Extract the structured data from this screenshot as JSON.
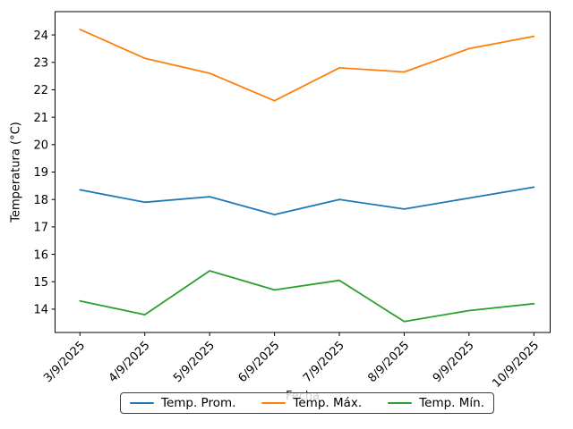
{
  "chart_data": {
    "type": "line",
    "title": "",
    "xlabel": "Fecha",
    "ylabel": "Temperatura (°C)",
    "categories": [
      "3/9/2025",
      "4/9/2025",
      "5/9/2025",
      "6/9/2025",
      "7/9/2025",
      "8/9/2025",
      "9/9/2025",
      "10/9/2025"
    ],
    "series": [
      {
        "name": "Temp. Prom.",
        "color": "#1f77b4",
        "values": [
          18.35,
          17.9,
          18.1,
          17.45,
          18.0,
          17.65,
          18.05,
          18.45
        ]
      },
      {
        "name": "Temp. Máx.",
        "color": "#ff7f0e",
        "values": [
          24.2,
          23.15,
          22.6,
          21.6,
          22.8,
          22.65,
          23.5,
          23.95
        ]
      },
      {
        "name": "Temp. Mín.",
        "color": "#2ca02c",
        "values": [
          14.3,
          13.8,
          15.4,
          14.7,
          15.05,
          13.55,
          13.95,
          14.2
        ]
      }
    ],
    "y_ticks": [
      14,
      15,
      16,
      17,
      18,
      19,
      20,
      21,
      22,
      23,
      24
    ],
    "ylim": [
      13.15,
      24.85
    ],
    "grid": false,
    "legend_position": "bottom-center",
    "x_tick_rotation": 45,
    "axis_color": "#000000",
    "tick_label_color": "#000000",
    "xlabel_color_under_legend": "#1a1a1a"
  }
}
